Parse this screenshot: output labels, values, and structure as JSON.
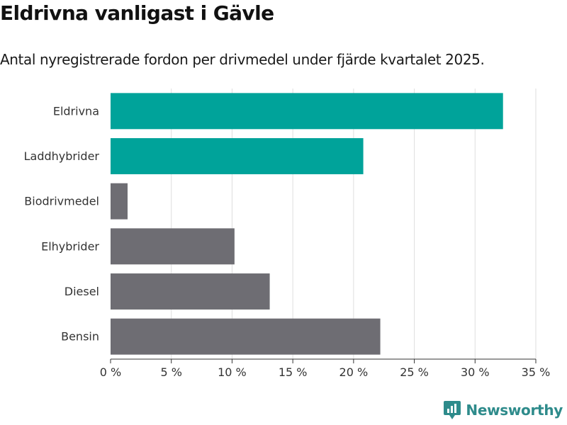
{
  "chart_data": {
    "type": "bar",
    "orientation": "horizontal",
    "title": "Eldrivna vanligast i Gävle",
    "subtitle": "Antal nyregistrerade fordon per drivmedel under fjärde kvartalet 2025.",
    "categories": [
      "Eldrivna",
      "Laddhybrider",
      "Biodrivmedel",
      "Elhybrider",
      "Diesel",
      "Bensin"
    ],
    "values": [
      32.3,
      20.8,
      1.4,
      10.2,
      13.1,
      22.2
    ],
    "bar_colors": [
      "#00a39a",
      "#00a39a",
      "#6e6d73",
      "#6e6d73",
      "#6e6d73",
      "#6e6d73"
    ],
    "xlim": [
      0,
      35
    ],
    "xticks": [
      0,
      5,
      10,
      15,
      20,
      25,
      30,
      35
    ],
    "tick_suffix": " %",
    "grid": true,
    "xlabel": "",
    "ylabel": ""
  },
  "branding": {
    "name": "Newsworthy",
    "icon": "newsworthy-logo-icon",
    "color": "#2e8b8b"
  }
}
